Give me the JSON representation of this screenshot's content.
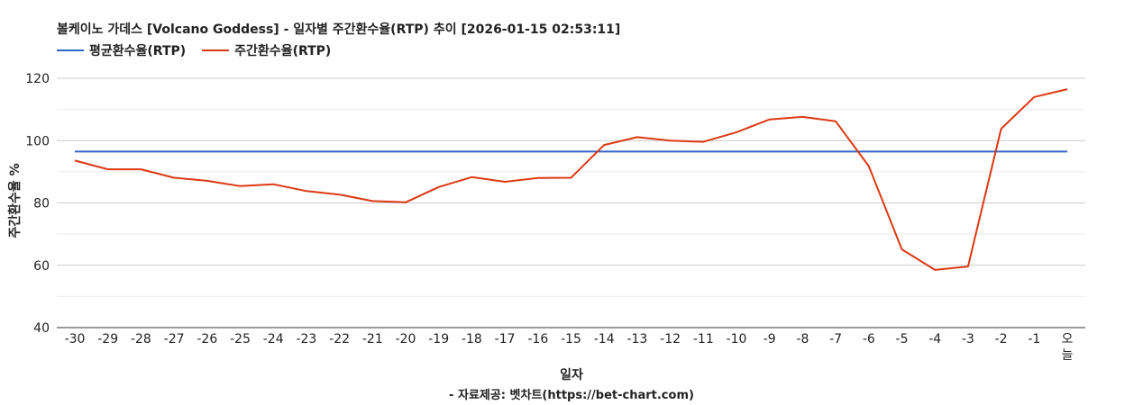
{
  "chart_data": {
    "type": "line",
    "title": "볼케이노 가데스 [Volcano Goddess] - 일자별 주간환수율(RTP) 추이 [2026-01-15 02:53:11]",
    "xlabel": "일자",
    "ylabel": "주간환수율 %",
    "source": "- 자료제공: 벳차트(https://bet-chart.com)",
    "ylim": [
      40,
      120
    ],
    "y_ticks": [
      "40",
      "60",
      "80",
      "100",
      "120"
    ],
    "legend_position": "top-left",
    "grid": true,
    "categories": [
      "-30",
      "-29",
      "-28",
      "-27",
      "-26",
      "-25",
      "-24",
      "-23",
      "-22",
      "-21",
      "-20",
      "-19",
      "-18",
      "-17",
      "-16",
      "-15",
      "-14",
      "-13",
      "-12",
      "-11",
      "-10",
      "-9",
      "-8",
      "-7",
      "-6",
      "-5",
      "-4",
      "-3",
      "-2",
      "-1",
      "오늘"
    ],
    "series": [
      {
        "name": "평균환수율(RTP)",
        "color": "#3366cc",
        "values": [
          96.5,
          96.5,
          96.5,
          96.5,
          96.5,
          96.5,
          96.5,
          96.5,
          96.5,
          96.5,
          96.5,
          96.5,
          96.5,
          96.5,
          96.5,
          96.5,
          96.5,
          96.5,
          96.5,
          96.5,
          96.5,
          96.5,
          96.5,
          96.5,
          96.5,
          96.5,
          96.5,
          96.5,
          96.5,
          96.5,
          96.5
        ]
      },
      {
        "name": "주간환수율(RTP)",
        "color": "#dc3912",
        "values": [
          93.6,
          90.8,
          90.8,
          88.1,
          87.1,
          85.4,
          86.0,
          83.8,
          82.7,
          80.6,
          80.2,
          85.1,
          88.3,
          86.8,
          88.0,
          88.1,
          98.6,
          101.1,
          100.0,
          99.6,
          102.7,
          106.8,
          107.6,
          106.2,
          91.8,
          65.1,
          58.5,
          59.6,
          103.8,
          114.0,
          116.5
        ]
      }
    ]
  }
}
